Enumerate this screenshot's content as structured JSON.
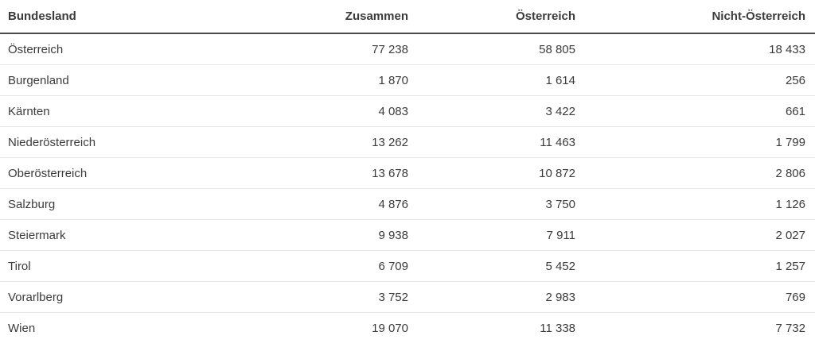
{
  "table": {
    "name": "bundesland-statistics-table",
    "columns": [
      {
        "label": "Bundesland",
        "align": "left"
      },
      {
        "label": "Zusammen",
        "align": "right"
      },
      {
        "label": "Österreich",
        "align": "right"
      },
      {
        "label": "Nicht-Österreich",
        "align": "right"
      }
    ],
    "rows": [
      {
        "bundesland": "Österreich",
        "values": [
          "77 238",
          "58 805",
          "18 433"
        ]
      },
      {
        "bundesland": "Burgenland",
        "values": [
          "1 870",
          "1 614",
          "256"
        ]
      },
      {
        "bundesland": "Kärnten",
        "values": [
          "4 083",
          "3 422",
          "661"
        ]
      },
      {
        "bundesland": "Niederösterreich",
        "values": [
          "13 262",
          "11 463",
          "1 799"
        ]
      },
      {
        "bundesland": "Oberösterreich",
        "values": [
          "13 678",
          "10 872",
          "2 806"
        ]
      },
      {
        "bundesland": "Salzburg",
        "values": [
          "4 876",
          "3 750",
          "1 126"
        ]
      },
      {
        "bundesland": "Steiermark",
        "values": [
          "9 938",
          "7 911",
          "2 027"
        ]
      },
      {
        "bundesland": "Tirol",
        "values": [
          "6 709",
          "5 452",
          "1 257"
        ]
      },
      {
        "bundesland": "Vorarlberg",
        "values": [
          "3 752",
          "2 983",
          "769"
        ]
      },
      {
        "bundesland": "Wien",
        "values": [
          "19 070",
          "11 338",
          "7 732"
        ]
      }
    ]
  },
  "colors": {
    "text": "#3b3b3b",
    "header_rule": "#4a4a4a",
    "row_divider": "#e6e6e6",
    "background": "#ffffff"
  }
}
